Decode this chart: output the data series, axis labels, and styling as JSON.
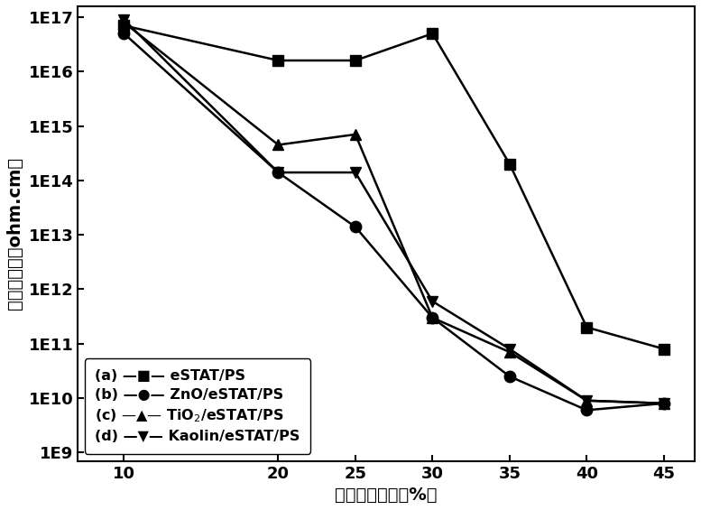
{
  "x": [
    10,
    20,
    25,
    30,
    35,
    40,
    45
  ],
  "series": [
    {
      "marker": "s",
      "y": [
        7e+16,
        1.6e+16,
        1.6e+16,
        5e+16,
        200000000000000.0,
        200000000000.0,
        80000000000.0
      ],
      "legend_prefix": "(a)",
      "legend_name": "eSTAT/PS"
    },
    {
      "marker": "o",
      "y": [
        5e+16,
        140000000000000.0,
        14000000000000.0,
        300000000000.0,
        25000000000.0,
        6000000000.0,
        8000000000.0
      ],
      "legend_prefix": "(b)",
      "legend_name": "ZnO/eSTAT/PS"
    },
    {
      "marker": "^",
      "y": [
        8e+16,
        450000000000000.0,
        700000000000000.0,
        300000000000.0,
        70000000000.0,
        9000000000.0,
        8000000000.0
      ],
      "legend_prefix": "(c)",
      "legend_name": "TiO$_2$/eSTAT/PS"
    },
    {
      "marker": "v",
      "y": [
        9e+16,
        140000000000000.0,
        140000000000000.0,
        600000000000.0,
        80000000000.0,
        9000000000.0,
        8000000000.0
      ],
      "legend_prefix": "(d)",
      "legend_name": "Kaolin/eSTAT/PS"
    }
  ],
  "xlabel_zh": "填充质量分数（%）",
  "ylabel_zh": "体积电阱率（ohm.cm）",
  "ylim_low": 9,
  "ylim_high": 17,
  "xticks": [
    10,
    20,
    25,
    30,
    35,
    40,
    45
  ],
  "background_color": "#ffffff",
  "font_size": 13,
  "marker_size": 9,
  "linewidth": 1.8,
  "color": "#000000"
}
